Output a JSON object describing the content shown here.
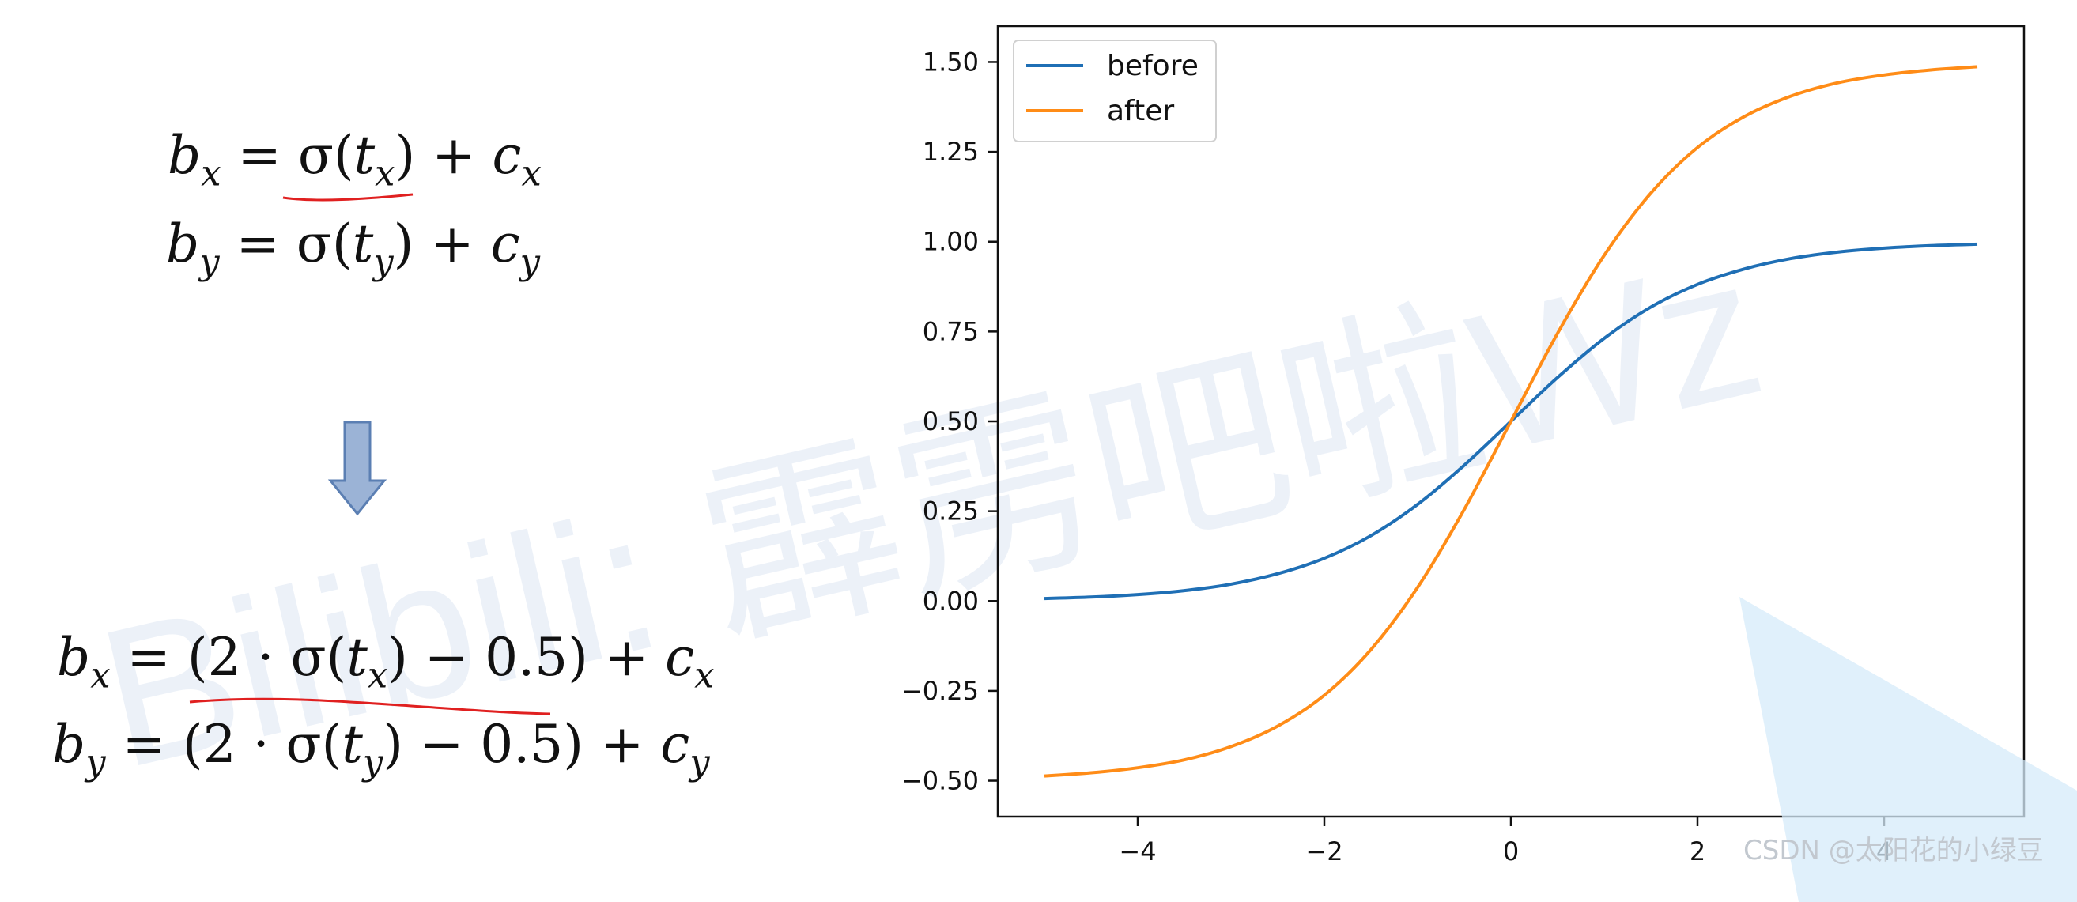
{
  "formulas": {
    "original": {
      "bx": {
        "lhs": "b",
        "lhs_sub": "x",
        "eq": " = ",
        "fn": "σ(",
        "arg": "t",
        "arg_sub": "x",
        "close": ")",
        "plus": " + ",
        "rhs": "c",
        "rhs_sub": "x"
      },
      "by": {
        "lhs": "b",
        "lhs_sub": "y",
        "eq": " = ",
        "fn": "σ(",
        "arg": "t",
        "arg_sub": "y",
        "close": ")",
        "plus": " + ",
        "rhs": "c",
        "rhs_sub": "y"
      }
    },
    "modified": {
      "bx": {
        "lhs": "b",
        "lhs_sub": "x",
        "eq": " = ",
        "open": "(2 · σ(",
        "arg": "t",
        "arg_sub": "x",
        "close": ") − 0.5)",
        "plus": " + ",
        "rhs": "c",
        "rhs_sub": "x"
      },
      "by": {
        "lhs": "b",
        "lhs_sub": "y",
        "eq": " = ",
        "open": "(2 · σ(",
        "arg": "t",
        "arg_sub": "y",
        "close": ") − 0.5)",
        "plus": " + ",
        "rhs": "c",
        "rhs_sub": "y"
      }
    }
  },
  "watermark": "Bilibili: 霹雳吧啦Wz",
  "csdn_watermark": "CSDN @太阳花的小绿豆",
  "colors": {
    "before": "#1f6fb5",
    "after": "#ff8c17",
    "annotation": "#e02020",
    "arrow_fill": "#9bb3d6",
    "arrow_stroke": "#5b7fb3"
  },
  "chart_data": {
    "type": "line",
    "xlim": [
      -5.5,
      5.5
    ],
    "ylim": [
      -0.6,
      1.6
    ],
    "xticks": [
      -4,
      -2,
      0,
      2,
      4
    ],
    "xtick_labels": [
      "−4",
      "−2",
      "0",
      "2",
      "4"
    ],
    "yticks": [
      -0.5,
      -0.25,
      0.0,
      0.25,
      0.5,
      0.75,
      1.0,
      1.25,
      1.5
    ],
    "ytick_labels": [
      "−0.50",
      "−0.25",
      "0.00",
      "0.25",
      "0.50",
      "0.75",
      "1.00",
      "1.25",
      "1.50"
    ],
    "legend_position": "top-left",
    "grid": false,
    "series": [
      {
        "name": "before",
        "x": [
          -5,
          -4.5,
          -4,
          -3.5,
          -3,
          -2.5,
          -2,
          -1.5,
          -1,
          -0.5,
          0,
          0.5,
          1,
          1.5,
          2,
          2.5,
          3,
          3.5,
          4,
          4.5,
          5
        ],
        "y": [
          0.007,
          0.011,
          0.018,
          0.029,
          0.047,
          0.076,
          0.119,
          0.182,
          0.269,
          0.378,
          0.5,
          0.622,
          0.731,
          0.818,
          0.881,
          0.924,
          0.953,
          0.971,
          0.982,
          0.989,
          0.993
        ]
      },
      {
        "name": "after",
        "x": [
          -5,
          -4.5,
          -4,
          -3.5,
          -3,
          -2.5,
          -2,
          -1.5,
          -1,
          -0.5,
          0,
          0.5,
          1,
          1.5,
          2,
          2.5,
          3,
          3.5,
          4,
          4.5,
          5
        ],
        "y": [
          -0.487,
          -0.478,
          -0.464,
          -0.442,
          -0.405,
          -0.348,
          -0.262,
          -0.135,
          0.038,
          0.255,
          0.5,
          0.745,
          0.962,
          1.135,
          1.262,
          1.348,
          1.405,
          1.442,
          1.464,
          1.478,
          1.487
        ]
      }
    ]
  }
}
